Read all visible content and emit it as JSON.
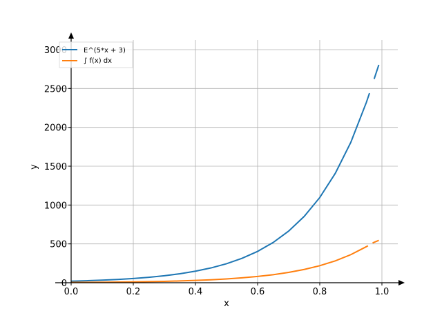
{
  "chart_data": {
    "type": "line",
    "title": "",
    "xlabel": "x",
    "ylabel": "y",
    "xlim": [
      0,
      1.05
    ],
    "ylim": [
      0,
      3100
    ],
    "xticks": [
      0.0,
      0.2,
      0.4,
      0.6,
      0.8,
      1.0
    ],
    "xtick_labels": [
      "0.0",
      "0.2",
      "0.4",
      "0.6",
      "0.8",
      "1.0"
    ],
    "yticks": [
      0,
      500,
      1000,
      1500,
      2000,
      2500,
      3000
    ],
    "ytick_labels": [
      "0",
      "500",
      "1000",
      "1500",
      "2000",
      "2500",
      "3000"
    ],
    "grid": true,
    "legend_position": "top-left",
    "series": [
      {
        "name": "E^(5*x + 3)",
        "color": "#1f77b4",
        "x": [
          0.0,
          0.05,
          0.1,
          0.15,
          0.2,
          0.25,
          0.3,
          0.35,
          0.4,
          0.45,
          0.5,
          0.55,
          0.6,
          0.65,
          0.7,
          0.75,
          0.8,
          0.85,
          0.9,
          0.95,
          0.96
        ],
        "y": [
          20.1,
          25.8,
          33.1,
          42.5,
          54.6,
          70.1,
          90.0,
          115.6,
          148.4,
          190.6,
          244.7,
          314.2,
          403.4,
          518.0,
          665.1,
          854.1,
          1096.6,
          1408.1,
          1808.0,
          2321.6,
          2440.6
        ],
        "extra_segment": {
          "x": [
            0.975,
            0.99
          ],
          "y": [
            2622.8,
            2804.3
          ]
        }
      },
      {
        "name": "∫ f(x) dx",
        "color": "#ff7f0e",
        "x": [
          0.0,
          0.05,
          0.1,
          0.15,
          0.2,
          0.25,
          0.3,
          0.35,
          0.4,
          0.45,
          0.5,
          0.55,
          0.6,
          0.65,
          0.7,
          0.75,
          0.8,
          0.85,
          0.9,
          0.95,
          0.955
        ],
        "y": [
          4.0,
          5.2,
          6.6,
          8.5,
          10.9,
          14.0,
          18.0,
          23.1,
          29.7,
          38.1,
          48.9,
          62.8,
          80.7,
          103.6,
          133.0,
          170.8,
          219.3,
          281.6,
          361.6,
          464.3,
          476.1
        ],
        "extra_segment": {
          "x": [
            0.97,
            0.99
          ],
          "y": [
            512.0,
            545.0
          ]
        }
      }
    ]
  }
}
